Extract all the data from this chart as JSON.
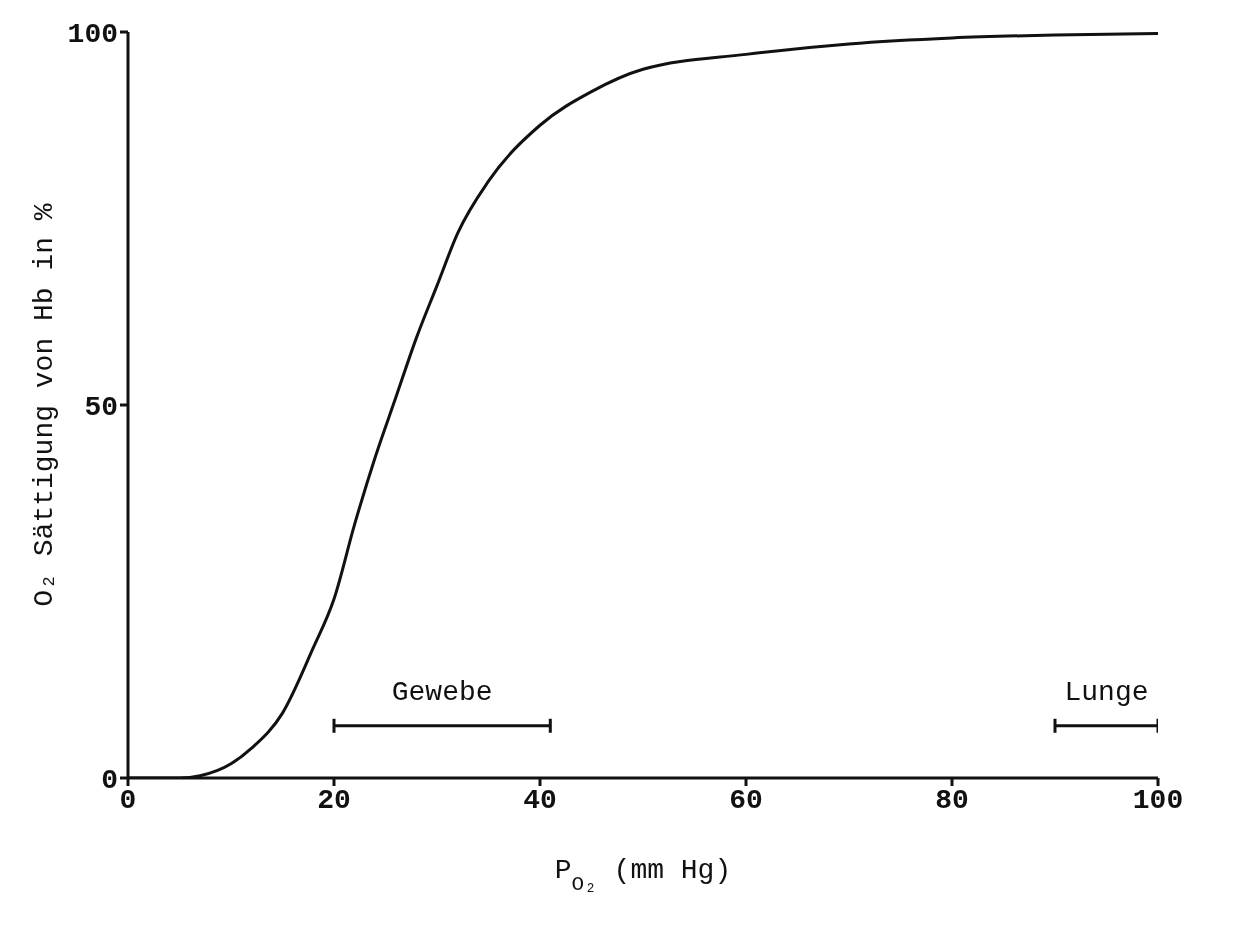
{
  "chart_data": {
    "type": "line",
    "xlabel": "P$_{O₂}$  (mm Hg)",
    "ylabel": "O₂ Sättigung von Hb in %",
    "xlim": [
      0,
      100
    ],
    "xticks": [
      0,
      20,
      40,
      60,
      80,
      100
    ],
    "ylim": [
      0,
      100
    ],
    "yticks": [
      0,
      50,
      100
    ],
    "grid": false,
    "legend": false,
    "marker": "none",
    "line_style": "solid",
    "series": [
      {
        "color": "#111111",
        "x": [
          0,
          5,
          7,
          10,
          12,
          15,
          18,
          20,
          22,
          24,
          26,
          28,
          30,
          32,
          35,
          40,
          45,
          50,
          60,
          70,
          80,
          90,
          100
        ],
        "values": [
          0,
          0,
          0.3,
          1.9,
          4,
          8.7,
          17.5,
          24,
          34,
          43,
          51,
          59,
          66,
          73,
          80,
          87.5,
          92,
          95,
          97,
          98.4,
          99.2,
          99.6,
          99.8
        ]
      },
      {
        "name": "Gewebe",
        "color": "#111111",
        "x": [
          20,
          41
        ],
        "values": [
          7,
          7
        ]
      },
      {
        "name": "Lunge",
        "color": "#111111",
        "x": [
          90,
          100
        ],
        "values": [
          7,
          7
        ]
      }
    ]
  }
}
